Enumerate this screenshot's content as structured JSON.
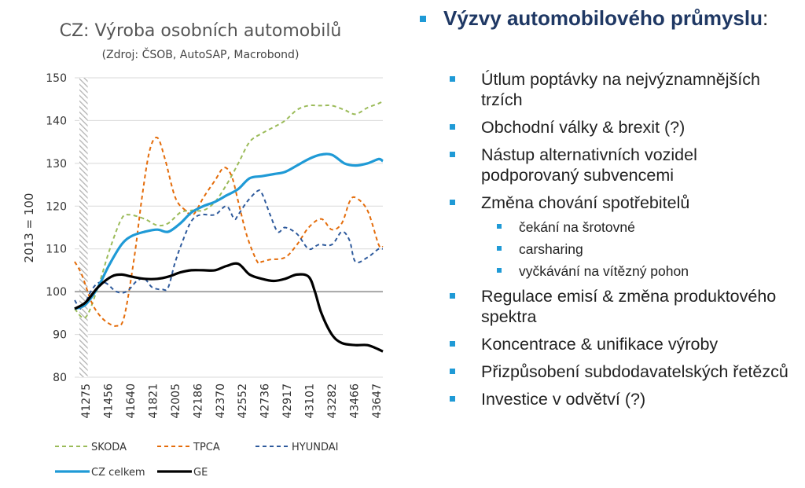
{
  "chart_data": {
    "type": "line",
    "title": "CZ: Výroba osobních automobilů",
    "subtitle": "(Zdroj: ČSOB, AutoSAP, Macrobond)",
    "ylabel": "2013 = 100",
    "xlabel": "",
    "ylim": [
      80,
      150
    ],
    "yticks": [
      80,
      90,
      100,
      110,
      120,
      130,
      140,
      150
    ],
    "xlim": [
      41275,
      43680
    ],
    "x_tick_labels": [
      "41275",
      "41456",
      "41640",
      "41821",
      "42005",
      "42186",
      "42370",
      "42552",
      "42736",
      "42917",
      "43101",
      "43282",
      "43466",
      "43647"
    ],
    "reference_line": 100,
    "shaded_region": [
      41275,
      41340
    ],
    "grid": "horizontal",
    "legend_position": "bottom",
    "series": [
      {
        "name": "SKODA",
        "color": "#9bbb59",
        "dash": "dashed",
        "x": [
          41275,
          41360,
          41456,
          41550,
          41640,
          41700,
          41821,
          41920,
          42005,
          42100,
          42186,
          42280,
          42370,
          42460,
          42552,
          42640,
          42736,
          42830,
          42917,
          43010,
          43101,
          43190,
          43282,
          43380,
          43466,
          43560,
          43647,
          43680
        ],
        "y": [
          96,
          94,
          101,
          110,
          117,
          118,
          117,
          115.5,
          116,
          118.5,
          119,
          119,
          121,
          125,
          130,
          135,
          137,
          138.5,
          140,
          142.5,
          143.5,
          143.5,
          143.5,
          142.5,
          141.5,
          143,
          144,
          144.5
        ]
      },
      {
        "name": "TPCA",
        "color": "#e46c0a",
        "dash": "dashed",
        "x": [
          41275,
          41330,
          41400,
          41456,
          41520,
          41600,
          41660,
          41740,
          41800,
          41860,
          41920,
          41980,
          42060,
          42140,
          42200,
          42280,
          42370,
          42440,
          42500,
          42552,
          42620,
          42700,
          42736,
          42800,
          42917,
          43010,
          43101,
          43200,
          43282,
          43360,
          43420,
          43466,
          43560,
          43647,
          43680
        ],
        "y": [
          107,
          104,
          98,
          95,
          93,
          92,
          94,
          108,
          122,
          133,
          136,
          131,
          122,
          119,
          118,
          122,
          126,
          129,
          127,
          121,
          113,
          107,
          107,
          107.5,
          108,
          111,
          115,
          117,
          114.5,
          116,
          121,
          122,
          119,
          111,
          110.5
        ]
      },
      {
        "name": "HYUNDAI",
        "color": "#2e5a9c",
        "dash": "dashed",
        "x": [
          41275,
          41330,
          41400,
          41456,
          41520,
          41600,
          41680,
          41760,
          41821,
          41880,
          41960,
          42005,
          42060,
          42120,
          42186,
          42260,
          42370,
          42460,
          42520,
          42552,
          42620,
          42700,
          42736,
          42800,
          42860,
          42917,
          43010,
          43101,
          43180,
          43282,
          43360,
          43420,
          43466,
          43560,
          43647,
          43680
        ],
        "y": [
          98,
          96,
          100,
          102,
          102,
          100,
          100,
          102.5,
          103,
          101,
          100.5,
          101,
          107,
          112,
          116.5,
          118,
          118,
          120,
          117,
          118,
          121,
          123.5,
          123,
          118,
          114,
          115,
          113.5,
          110,
          111,
          111,
          114,
          112,
          107,
          108,
          110,
          110
        ]
      },
      {
        "name": "CZ celkem",
        "color": "#1f9ad6",
        "dash": "solid",
        "x": [
          41275,
          41360,
          41456,
          41540,
          41640,
          41720,
          41821,
          41920,
          42005,
          42100,
          42186,
          42280,
          42370,
          42460,
          42552,
          42640,
          42736,
          42830,
          42917,
          43010,
          43101,
          43190,
          43282,
          43380,
          43466,
          43560,
          43647,
          43680
        ],
        "y": [
          96,
          97,
          101,
          106,
          111,
          113,
          114,
          114.5,
          114,
          116,
          118.5,
          120,
          121,
          122.5,
          124,
          126.5,
          127,
          127.5,
          128,
          129.5,
          131,
          132,
          132,
          130,
          129.5,
          130,
          131,
          130.5
        ]
      },
      {
        "name": "GE",
        "color": "#000000",
        "dash": "solid",
        "x": [
          41275,
          41360,
          41456,
          41560,
          41640,
          41720,
          41821,
          41920,
          42005,
          42100,
          42186,
          42280,
          42370,
          42460,
          42552,
          42640,
          42736,
          42830,
          42917,
          43010,
          43101,
          43150,
          43200,
          43282,
          43360,
          43466,
          43560,
          43647,
          43680
        ],
        "y": [
          96,
          97.5,
          101,
          103.5,
          104,
          103.5,
          103,
          103,
          103.5,
          104.5,
          105,
          105,
          105,
          106,
          106.5,
          104,
          103,
          102.5,
          103,
          104,
          103.5,
          100,
          95,
          90,
          88,
          87.5,
          87.5,
          86.5,
          86
        ]
      }
    ]
  },
  "bullets": {
    "heading_bold": "Výzvy automobilového průmyslu",
    "heading_colon": ":",
    "items": [
      {
        "level": 1,
        "text": "Útlum poptávky na nejvýznamnějších trzích"
      },
      {
        "level": 1,
        "text": "Obchodní války & brexit (?)"
      },
      {
        "level": 1,
        "text": "Nástup alternativních vozidel podporovaný subvencemi"
      },
      {
        "level": 1,
        "text": "Změna chování spotřebitelů"
      },
      {
        "level": 2,
        "text": "čekání na šrotovné"
      },
      {
        "level": 2,
        "text": "carsharing"
      },
      {
        "level": 2,
        "text": "vyčkávání na vítězný pohon"
      },
      {
        "level": 1,
        "text": "Regulace emisí & změna produktového spektra"
      },
      {
        "level": 1,
        "text": "Koncentrace & unifikace výroby"
      },
      {
        "level": 1,
        "text": "Přizpůsobení subdodavatelských řetězců"
      },
      {
        "level": 1,
        "text": "Investice v odvětví (?)"
      }
    ],
    "marker_color": "#1f9ad6",
    "heading_color": "#1f3864"
  }
}
